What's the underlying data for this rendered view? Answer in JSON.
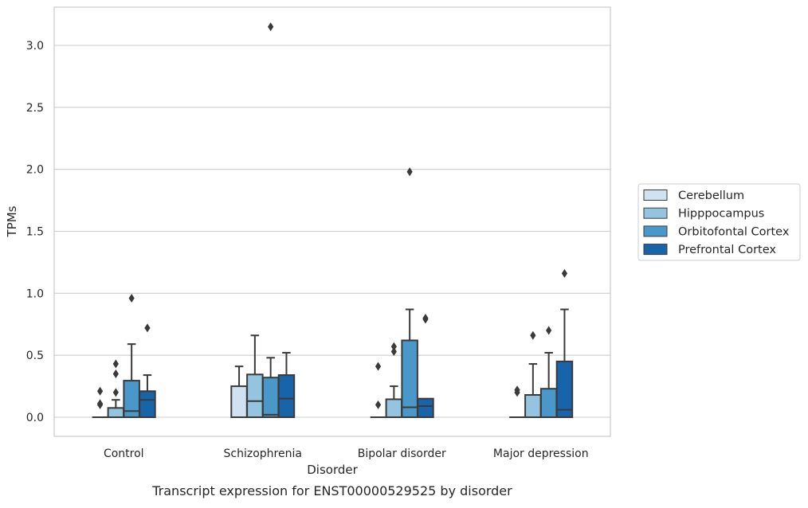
{
  "caption": "Transcript expression for ENST00000529525 by disorder",
  "chart_data": {
    "type": "box",
    "xlabel": "Disorder",
    "ylabel": "TPMs",
    "ylim": [
      -0.15,
      3.3
    ],
    "yticks": [
      "0.0",
      "0.5",
      "1.0",
      "1.5",
      "2.0",
      "2.5",
      "3.0"
    ],
    "categories": [
      "Control",
      "Schizophrenia",
      "Bipolar disorder",
      "Major depression"
    ],
    "grid": "horizontal",
    "legend_position": "right",
    "series": [
      {
        "name": "Cerebellum",
        "color": "#d0e1f2",
        "boxes": [
          {
            "q1": 0,
            "median": 0,
            "q3": 0,
            "whislo": 0,
            "whishi": 0,
            "fliers": [
              0.1,
              0.11,
              0.21
            ]
          },
          {
            "q1": 0,
            "median": 0,
            "q3": 0.25,
            "whislo": 0,
            "whishi": 0.41,
            "fliers": []
          },
          {
            "q1": 0,
            "median": 0,
            "q3": 0,
            "whislo": 0,
            "whishi": 0,
            "fliers": [
              0.1,
              0.41
            ]
          },
          {
            "q1": 0,
            "median": 0,
            "q3": 0,
            "whislo": 0,
            "whishi": 0,
            "fliers": [
              0.2,
              0.22
            ]
          }
        ]
      },
      {
        "name": "Hipppocampus",
        "color": "#94c4df",
        "boxes": [
          {
            "q1": 0,
            "median": 0,
            "q3": 0.075,
            "whislo": 0,
            "whishi": 0.14,
            "fliers": [
              0.2,
              0.35,
              0.43
            ]
          },
          {
            "q1": 0,
            "median": 0.13,
            "q3": 0.345,
            "whislo": 0,
            "whishi": 0.66,
            "fliers": []
          },
          {
            "q1": 0,
            "median": 0,
            "q3": 0.145,
            "whislo": 0,
            "whishi": 0.25,
            "fliers": [
              0.53,
              0.57
            ]
          },
          {
            "q1": 0,
            "median": 0,
            "q3": 0.18,
            "whislo": 0,
            "whishi": 0.43,
            "fliers": [
              0.66
            ]
          }
        ]
      },
      {
        "name": "Orbitofontal Cortex",
        "color": "#4a98c9",
        "boxes": [
          {
            "q1": 0,
            "median": 0.05,
            "q3": 0.295,
            "whislo": 0,
            "whishi": 0.59,
            "fliers": [
              0.96
            ]
          },
          {
            "q1": 0,
            "median": 0.02,
            "q3": 0.32,
            "whislo": 0,
            "whishi": 0.48,
            "fliers": [
              3.15
            ]
          },
          {
            "q1": 0,
            "median": 0.08,
            "q3": 0.62,
            "whislo": 0,
            "whishi": 0.87,
            "fliers": [
              1.98
            ]
          },
          {
            "q1": 0,
            "median": 0,
            "q3": 0.23,
            "whislo": 0,
            "whishi": 0.52,
            "fliers": [
              0.7
            ]
          }
        ]
      },
      {
        "name": "Prefrontal Cortex",
        "color": "#1764ab",
        "boxes": [
          {
            "q1": 0,
            "median": 0.14,
            "q3": 0.21,
            "whislo": 0,
            "whishi": 0.34,
            "fliers": [
              0.72
            ]
          },
          {
            "q1": 0,
            "median": 0.15,
            "q3": 0.34,
            "whislo": 0,
            "whishi": 0.52,
            "fliers": []
          },
          {
            "q1": 0,
            "median": 0.09,
            "q3": 0.15,
            "whislo": 0,
            "whishi": 0.15,
            "fliers": [
              0.79,
              0.8
            ]
          },
          {
            "q1": 0,
            "median": 0.06,
            "q3": 0.45,
            "whislo": 0,
            "whishi": 0.87,
            "fliers": [
              1.16
            ]
          }
        ]
      }
    ]
  }
}
